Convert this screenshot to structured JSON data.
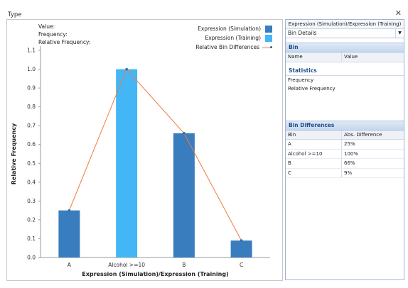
{
  "window": {
    "title": "Type",
    "close_icon": "close-icon"
  },
  "info": {
    "value_label": "Value:",
    "frequency_label": "Frequency:",
    "relative_frequency_label": "Relative Frequency:"
  },
  "legend": {
    "simulation": "Expression (Simulation)",
    "training": "Expression (Training)",
    "differences": "Relative Bin Differences"
  },
  "colors": {
    "simulation": "#3a7dbe",
    "training": "#45b6f5",
    "difference_line": "#f07a3a",
    "difference_marker": "#2c6fb1"
  },
  "chart_data": {
    "type": "bar",
    "categories": [
      "A",
      "Alcohol >=10",
      "B",
      "C"
    ],
    "series": [
      {
        "name": "Expression (Simulation)",
        "values": [
          0.25,
          null,
          0.66,
          0.09
        ]
      },
      {
        "name": "Expression (Training)",
        "values": [
          null,
          1.0,
          null,
          null
        ]
      },
      {
        "name": "Relative Bin Differences",
        "type": "line",
        "values": [
          0.25,
          1.0,
          0.66,
          0.09
        ]
      }
    ],
    "xlabel": "Expression (Simulation)/Expression (Training)",
    "ylabel": "Relative Frequency",
    "ylim": [
      0,
      1.1
    ],
    "yticks": [
      "0.0",
      "0.1",
      "0.2",
      "0.3",
      "0.4",
      "0.5",
      "0.6",
      "0.7",
      "0.8",
      "0.9",
      "1.0",
      "1.1"
    ],
    "grid": false
  },
  "side_panel": {
    "title": "Expression (Simulation)/Expression (Training)",
    "dropdown_value": "Bin Details",
    "bin_section": "Bin",
    "bin_columns": [
      "Name",
      "Value"
    ],
    "statistics_section": "Statistics",
    "statistics_rows": [
      "Frequency",
      "Relative Frequency"
    ],
    "differences_section": "Bin Differences",
    "differences_columns": [
      "Bin",
      "Abs. Difference"
    ],
    "differences_rows": [
      {
        "bin": "A",
        "diff": "25%"
      },
      {
        "bin": "Alcohol >=10",
        "diff": "100%"
      },
      {
        "bin": "B",
        "diff": "66%"
      },
      {
        "bin": "C",
        "diff": "9%"
      }
    ]
  }
}
